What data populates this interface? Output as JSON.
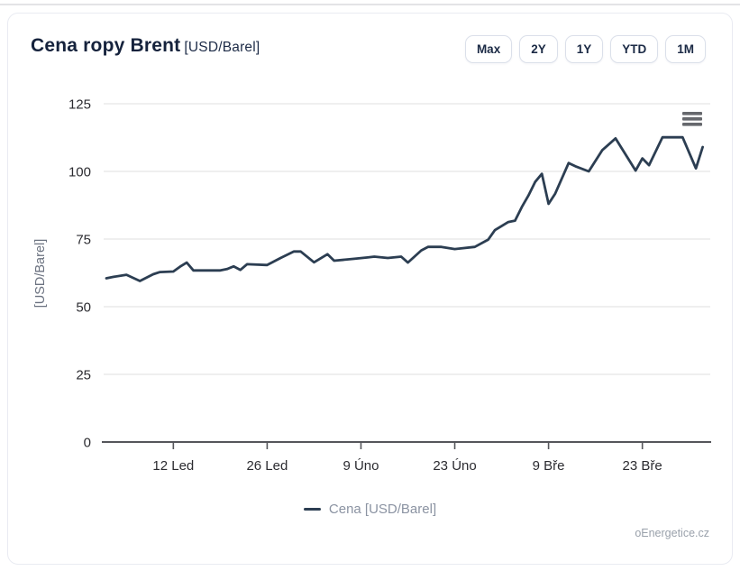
{
  "header": {
    "title": "Cena ropy Brent",
    "title_unit": "[USD/Barel]",
    "range_buttons": [
      {
        "label": "Max"
      },
      {
        "label": "2Y"
      },
      {
        "label": "1Y"
      },
      {
        "label": "YTD"
      },
      {
        "label": "1M"
      }
    ]
  },
  "legend": {
    "label": "Cena [USD/Barel]"
  },
  "attribution": "oEnergetice.cz",
  "icons": {
    "context_menu": "hamburger-icon"
  },
  "colors": {
    "series": "#2c3e52",
    "title": "#15223c",
    "grid": "#ededed",
    "axis_line": "#55565b",
    "axis_label": "#2b2b30",
    "y_axis_title": "#6b7280",
    "legend_text": "#8b93a2",
    "burger": "#66686d"
  },
  "chart_data": {
    "type": "line",
    "title": "Cena ropy Brent [USD/Barel]",
    "xlabel": "",
    "ylabel": "[USD/Barel]",
    "grid": "horizontal",
    "legend_position": "bottom",
    "y_axis": {
      "title": "[USD/Barel]",
      "ticks": [
        0,
        25,
        50,
        75,
        100,
        125
      ],
      "min": 0,
      "max": 125
    },
    "x_axis": {
      "day_min": 0,
      "day_max": 90,
      "ticks": [
        {
          "label": "12 Led",
          "day": 10
        },
        {
          "label": "26 Led",
          "day": 24
        },
        {
          "label": "9 Úno",
          "day": 38
        },
        {
          "label": "23 Úno",
          "day": 52
        },
        {
          "label": "9 Bře",
          "day": 66
        },
        {
          "label": "23 Bře",
          "day": 80
        }
      ]
    },
    "series": [
      {
        "name": "Cena [USD/Barel]",
        "color": "#2c3e52",
        "points": [
          [
            "2 Led",
            0,
            60.5
          ],
          [
            "3 Led",
            1,
            61.0
          ],
          [
            "5 Led",
            3,
            61.8
          ],
          [
            "7 Led",
            5,
            59.5
          ],
          [
            "9 Led",
            7,
            62.0
          ],
          [
            "10 Led",
            8,
            62.8
          ],
          [
            "12 Led",
            10,
            63.0
          ],
          [
            "13 Led",
            11,
            64.8
          ],
          [
            "14 Led",
            12,
            66.3
          ],
          [
            "15 Led",
            13,
            63.4
          ],
          [
            "19 Led",
            17,
            63.4
          ],
          [
            "20 Led",
            18,
            63.9
          ],
          [
            "21 Led",
            19,
            64.9
          ],
          [
            "22 Led",
            20,
            63.6
          ],
          [
            "23 Led",
            21,
            65.7
          ],
          [
            "26 Led",
            24,
            65.4
          ],
          [
            "28 Led",
            26,
            68.0
          ],
          [
            "30 Led",
            28,
            70.4
          ],
          [
            "31 Led",
            29,
            70.4
          ],
          [
            "2 Úno",
            31,
            66.4
          ],
          [
            "4 Úno",
            33,
            69.4
          ],
          [
            "5 Úno",
            34,
            67.0
          ],
          [
            "8 Úno",
            37,
            67.7
          ],
          [
            "10 Úno",
            39,
            68.2
          ],
          [
            "11 Úno",
            40,
            68.5
          ],
          [
            "13 Úno",
            42,
            68.0
          ],
          [
            "15 Úno",
            44,
            68.5
          ],
          [
            "16 Úno",
            45,
            66.3
          ],
          [
            "18 Úno",
            47,
            70.8
          ],
          [
            "19 Úno",
            48,
            72.1
          ],
          [
            "21 Úno",
            50,
            72.1
          ],
          [
            "23 Úno",
            52,
            71.3
          ],
          [
            "26 Úno",
            55,
            72.1
          ],
          [
            "28 Úno",
            57,
            74.8
          ],
          [
            "1 Bře",
            58,
            78.3
          ],
          [
            "3 Bře",
            60,
            81.3
          ],
          [
            "4 Bře",
            61,
            81.8
          ],
          [
            "5 Bře",
            62,
            86.8
          ],
          [
            "6 Bře",
            63,
            91.1
          ],
          [
            "7 Bře",
            64,
            96.1
          ],
          [
            "8 Bře",
            65,
            99.1
          ],
          [
            "9 Bře",
            66,
            88.0
          ],
          [
            "10 Bře",
            67,
            91.8
          ],
          [
            "12 Bře",
            69,
            103.1
          ],
          [
            "13 Bře",
            70,
            101.9
          ],
          [
            "15 Bře",
            72,
            100.0
          ],
          [
            "17 Bře",
            74,
            107.8
          ],
          [
            "19 Bře",
            76,
            112.2
          ],
          [
            "22 Bře",
            79,
            100.3
          ],
          [
            "23 Bře",
            80,
            104.8
          ],
          [
            "24 Bře",
            81,
            102.3
          ],
          [
            "26 Bře",
            83,
            112.6
          ],
          [
            "29 Bře",
            86,
            112.6
          ],
          [
            "31 Bře",
            88,
            101.1
          ],
          [
            "1 Dub",
            89,
            109.0
          ]
        ]
      }
    ]
  }
}
